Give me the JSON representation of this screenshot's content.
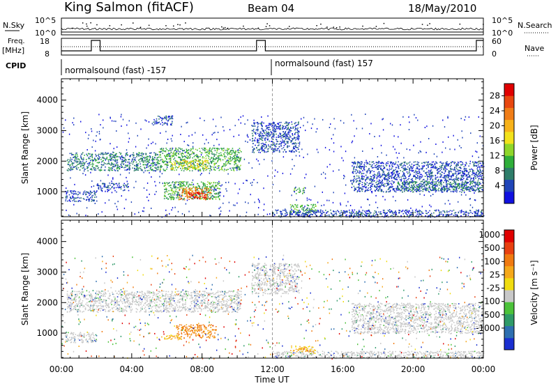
{
  "header": {
    "title": "King Salmon (fitACF)",
    "beam": "Beam 04",
    "date": "18/May/2010"
  },
  "top_panels": {
    "nsky_label": "N.Sky",
    "nsky_ticks": [
      "10^5",
      "10^0"
    ],
    "nsearch_label": "N.Search",
    "nsearch_ticks": [
      "10^5",
      "10^0"
    ],
    "freq_label": "Freq.",
    "freq_unit": "[MHz]",
    "freq_ticks": [
      18,
      8
    ],
    "nave_label": "Nave",
    "nave_ticks": [
      60,
      0
    ],
    "cpid_label": "CPID",
    "cpid_segments": [
      {
        "label": "normalsound (fast) -157",
        "start_hour": 0
      },
      {
        "label": "normalsound (fast) 157",
        "start_hour": 12
      }
    ]
  },
  "chart_data": [
    {
      "type": "heatmap",
      "name": "power",
      "ylabel": "Slant Range [km]",
      "yticks": [
        1000,
        2000,
        3000,
        4000
      ],
      "ylim": [
        180,
        4700
      ],
      "xlim": [
        0,
        24
      ],
      "colorbar": {
        "label": "Power [dB]",
        "ticks": [
          "4",
          "8",
          "12",
          "16",
          "20",
          "24",
          "28"
        ],
        "colors": [
          "#1010e0",
          "#2045b8",
          "#2e7d6a",
          "#2fae3a",
          "#8fd62a",
          "#f2e21c",
          "#f7b21a",
          "#f07d17",
          "#e8470f",
          "#e00000"
        ]
      },
      "regions": [
        {
          "x": [
            0.3,
            5.5
          ],
          "y": [
            1700,
            2300
          ],
          "level": 2
        },
        {
          "x": [
            5.5,
            10.2
          ],
          "y": [
            1700,
            2450
          ],
          "level": 3
        },
        {
          "x": [
            6.2,
            8.3
          ],
          "y": [
            1750,
            2050
          ],
          "level": 5
        },
        {
          "x": [
            0.2,
            2.0
          ],
          "y": [
            700,
            1050
          ],
          "level": 1
        },
        {
          "x": [
            2.0,
            3.8
          ],
          "y": [
            1050,
            1300
          ],
          "level": 1
        },
        {
          "x": [
            5.8,
            9.0
          ],
          "y": [
            750,
            1350
          ],
          "level": 3
        },
        {
          "x": [
            6.6,
            8.5
          ],
          "y": [
            750,
            1150
          ],
          "level": 7
        },
        {
          "x": [
            7.2,
            8.2
          ],
          "y": [
            780,
            1000
          ],
          "level": 9
        },
        {
          "x": [
            10.8,
            13.5
          ],
          "y": [
            2300,
            3300
          ],
          "level": 1
        },
        {
          "x": [
            5.2,
            6.3
          ],
          "y": [
            3200,
            3500
          ],
          "level": 1
        },
        {
          "x": [
            13.0,
            14.5
          ],
          "y": [
            300,
            600
          ],
          "level": 3
        },
        {
          "x": [
            13.2,
            13.8
          ],
          "y": [
            950,
            1150
          ],
          "level": 3
        },
        {
          "x": [
            16.5,
            24.0
          ],
          "y": [
            1000,
            2000
          ],
          "level": 1
        },
        {
          "x": [
            19.0,
            23.8
          ],
          "y": [
            1050,
            1350
          ],
          "level": 2
        },
        {
          "x": [
            12.0,
            24.0
          ],
          "y": [
            180,
            420
          ],
          "level": 1
        }
      ]
    },
    {
      "type": "heatmap",
      "name": "velocity",
      "ylabel": "Slant Range [km]",
      "xlabel": "Time UT",
      "xticks": [
        "00:00",
        "04:00",
        "08:00",
        "12:00",
        "16:00",
        "20:00",
        "00:00"
      ],
      "yticks": [
        1000,
        2000,
        3000,
        4000
      ],
      "ylim": [
        180,
        4700
      ],
      "xlim": [
        0,
        24
      ],
      "colorbar": {
        "label": "Velocity [m s⁻¹]",
        "ticks": [
          "1000",
          "500",
          "100",
          "25",
          "-25",
          "-100",
          "-500",
          "-1000"
        ],
        "colors": [
          "#1a2fd0",
          "#2e6fb0",
          "#2f9a68",
          "#4cc23a",
          "#c8c8c8",
          "#f0dc10",
          "#f5a81a",
          "#f07a10",
          "#e84010",
          "#e00000"
        ]
      },
      "regions": [
        {
          "x": [
            0.3,
            10.2
          ],
          "y": [
            1700,
            2400
          ],
          "class": "ground"
        },
        {
          "x": [
            10.8,
            13.5
          ],
          "y": [
            2300,
            3300
          ],
          "class": "ground"
        },
        {
          "x": [
            16.5,
            24.0
          ],
          "y": [
            1000,
            2000
          ],
          "class": "ground"
        },
        {
          "x": [
            6.5,
            8.8
          ],
          "y": [
            850,
            1300
          ],
          "class": "-500"
        },
        {
          "x": [
            5.6,
            6.8
          ],
          "y": [
            800,
            950
          ],
          "class": "-100"
        },
        {
          "x": [
            13.0,
            14.4
          ],
          "y": [
            350,
            600
          ],
          "class": "-100"
        },
        {
          "x": [
            0.2,
            2.0
          ],
          "y": [
            700,
            1050
          ],
          "class": "ground"
        },
        {
          "x": [
            12.0,
            24.0
          ],
          "y": [
            180,
            420
          ],
          "class": "ground"
        }
      ]
    }
  ]
}
